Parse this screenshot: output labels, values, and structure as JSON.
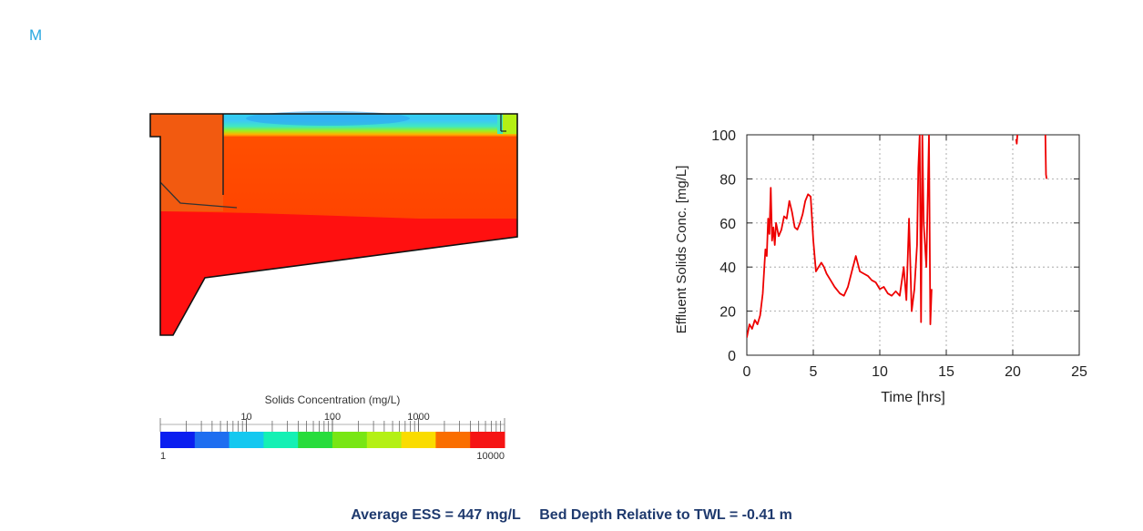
{
  "header": {
    "logo_text": "M"
  },
  "legend": {
    "title": "Solids Concentration (mg/L)",
    "top_ticks": [
      "10",
      "100",
      "1000"
    ],
    "bottom_ticks": [
      "1",
      "10000"
    ],
    "colors": [
      "#0a1ef0",
      "#1e6ef0",
      "#14c8f0",
      "#14f0b4",
      "#28dc3c",
      "#78e614",
      "#b4f014",
      "#fadc00",
      "#fa6e00",
      "#f51414"
    ]
  },
  "tank_colors": {
    "clear_top": "#30d0f0",
    "mid_orange": "#ff4d00",
    "bottom_red": "#ff1010",
    "inlet_orange": "#f25a10"
  },
  "chart_data": {
    "type": "line",
    "xlabel": "Time [hrs]",
    "ylabel": "Effluent Solids Conc. [mg/L]",
    "xlim": [
      0,
      25
    ],
    "ylim": [
      0,
      100
    ],
    "xticks": [
      0,
      5,
      10,
      15,
      20,
      25
    ],
    "yticks": [
      0,
      20,
      40,
      60,
      80,
      100
    ],
    "grid": true,
    "line_color": "#ee0000",
    "series": [
      {
        "name": "",
        "x": [
          0,
          0.2,
          0.4,
          0.6,
          0.8,
          1.0,
          1.2,
          1.4,
          1.5,
          1.6,
          1.7,
          1.8,
          1.9,
          2.0,
          2.1,
          2.2,
          2.4,
          2.6,
          2.8,
          3.0,
          3.2,
          3.4,
          3.6,
          3.8,
          4.0,
          4.2,
          4.4,
          4.6,
          4.8,
          5.0,
          5.2,
          5.4,
          5.6,
          5.8,
          6.0,
          6.3,
          6.6,
          7.0,
          7.3,
          7.6,
          7.9,
          8.2,
          8.5,
          8.8,
          9.1,
          9.4,
          9.7,
          10.0,
          10.3,
          10.6,
          10.9,
          11.2,
          11.5,
          11.8,
          12.0,
          12.2,
          12.4,
          12.6,
          12.8,
          12.9,
          13.0,
          13.1,
          13.2,
          13.3,
          13.5,
          13.7,
          13.8,
          13.9
        ],
        "values": [
          8,
          14,
          12,
          16,
          14,
          18,
          28,
          48,
          45,
          62,
          55,
          76,
          52,
          58,
          50,
          60,
          54,
          57,
          63,
          62,
          70,
          65,
          58,
          57,
          60,
          64,
          70,
          73,
          72,
          52,
          38,
          40,
          42,
          40,
          37,
          34,
          31,
          28,
          27,
          31,
          38,
          45,
          38,
          37,
          36,
          34,
          33,
          30,
          31,
          28,
          27,
          29,
          27,
          40,
          25,
          62,
          20,
          30,
          50,
          85,
          100,
          15,
          100,
          60,
          40,
          100,
          14,
          30
        ]
      },
      {
        "name": "",
        "x": [
          20.25,
          20.3,
          20.35
        ],
        "values": [
          98,
          96,
          100
        ]
      },
      {
        "name": "",
        "x": [
          22.45,
          22.5,
          22.55
        ],
        "values": [
          100,
          82,
          80
        ]
      }
    ]
  },
  "footer": {
    "ess_text": "Average ESS = 447 mg/L",
    "bed_text": "Bed Depth Relative to TWL = -0.41 m"
  }
}
